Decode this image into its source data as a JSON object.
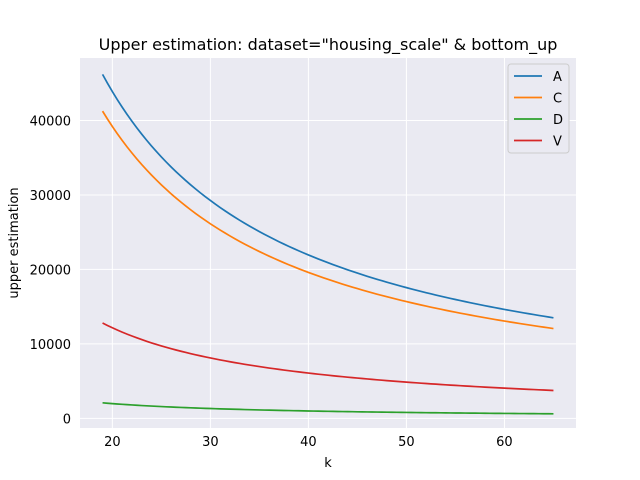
{
  "chart_data": {
    "type": "line",
    "title": "Upper estimation: dataset=\"housing_scale\" & bottom_up",
    "xlabel": "k",
    "ylabel": "upper estimation",
    "xlim": [
      16.7,
      67.3
    ],
    "ylim": [
      -1300,
      48400
    ],
    "xticks": [
      20,
      30,
      40,
      50,
      60
    ],
    "yticks": [
      0,
      10000,
      20000,
      30000,
      40000
    ],
    "grid": true,
    "legend_position": "top-right",
    "x_start": 19,
    "x_end": 65,
    "series": [
      {
        "name": "A",
        "color": "#1f77b4",
        "c": 877800
      },
      {
        "name": "C",
        "color": "#ff7f0e",
        "c": 784000
      },
      {
        "name": "D",
        "color": "#2ca02c",
        "c": 39500
      },
      {
        "name": "V",
        "color": "#d62728",
        "c": 243200
      }
    ]
  }
}
